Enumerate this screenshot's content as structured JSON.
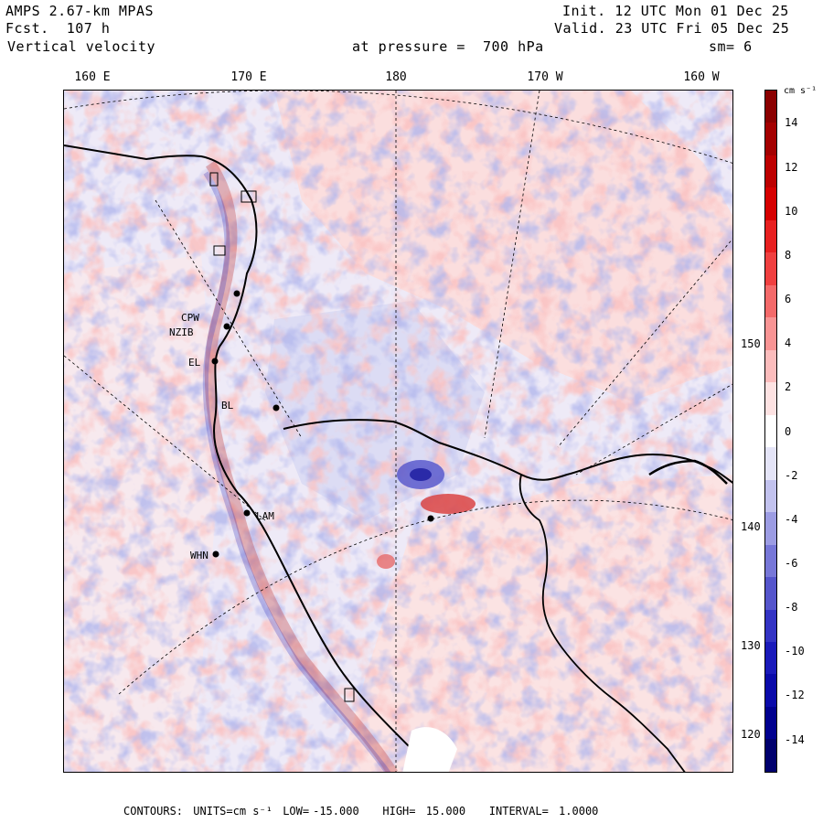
{
  "header": {
    "model": "AMPS 2.67-km MPAS",
    "forecast_label": "Fcst.",
    "forecast_hours": "107 h",
    "field": "Vertical velocity",
    "init_label": "Init.",
    "init_time": "12 UTC Mon 01 Dec 25",
    "valid_label": "Valid.",
    "valid_time": "23 UTC Fri 05 Dec 25",
    "level_label": "at pressure =",
    "level_value": "700 hPa",
    "smoothing": "sm= 6"
  },
  "longitude_labels": [
    "160 E",
    "170 E",
    "180",
    "170 W",
    "160 W"
  ],
  "latitude_labels": [
    "150 W",
    "140 W",
    "130 W",
    "120 W"
  ],
  "stations": [
    {
      "name": "CPW"
    },
    {
      "name": "NZIB"
    },
    {
      "name": "BL"
    },
    {
      "name": "LAM"
    },
    {
      "name": "WHN"
    },
    {
      "name": "EL"
    }
  ],
  "colorbar": {
    "units": "cm s⁻¹",
    "ticks": [
      "14",
      "12",
      "10",
      "8",
      "6",
      "4",
      "2",
      "0",
      "-2",
      "-4",
      "-6",
      "-8",
      "-10",
      "-12",
      "-14"
    ],
    "colors": [
      "#8b0000",
      "#a40000",
      "#bd0000",
      "#d60000",
      "#e82020",
      "#f04040",
      "#f46a6a",
      "#f89494",
      "#fbbcbc",
      "#fde2e2",
      "#ffffff",
      "#e4e4f7",
      "#c2c2ee",
      "#9c9ce3",
      "#7777d8",
      "#5555cc",
      "#3333c4",
      "#1a1aba",
      "#0a0aaa",
      "#00008f",
      "#00006e"
    ]
  },
  "contours": {
    "heading": "CONTOURS:",
    "units_label": "UNITS=cm s⁻¹",
    "low_label": "LOW=",
    "low_value": "-15.000",
    "high_label": "HIGH=",
    "high_value": "15.000",
    "interval_label": "INTERVAL=",
    "interval_value": "1.0000"
  }
}
